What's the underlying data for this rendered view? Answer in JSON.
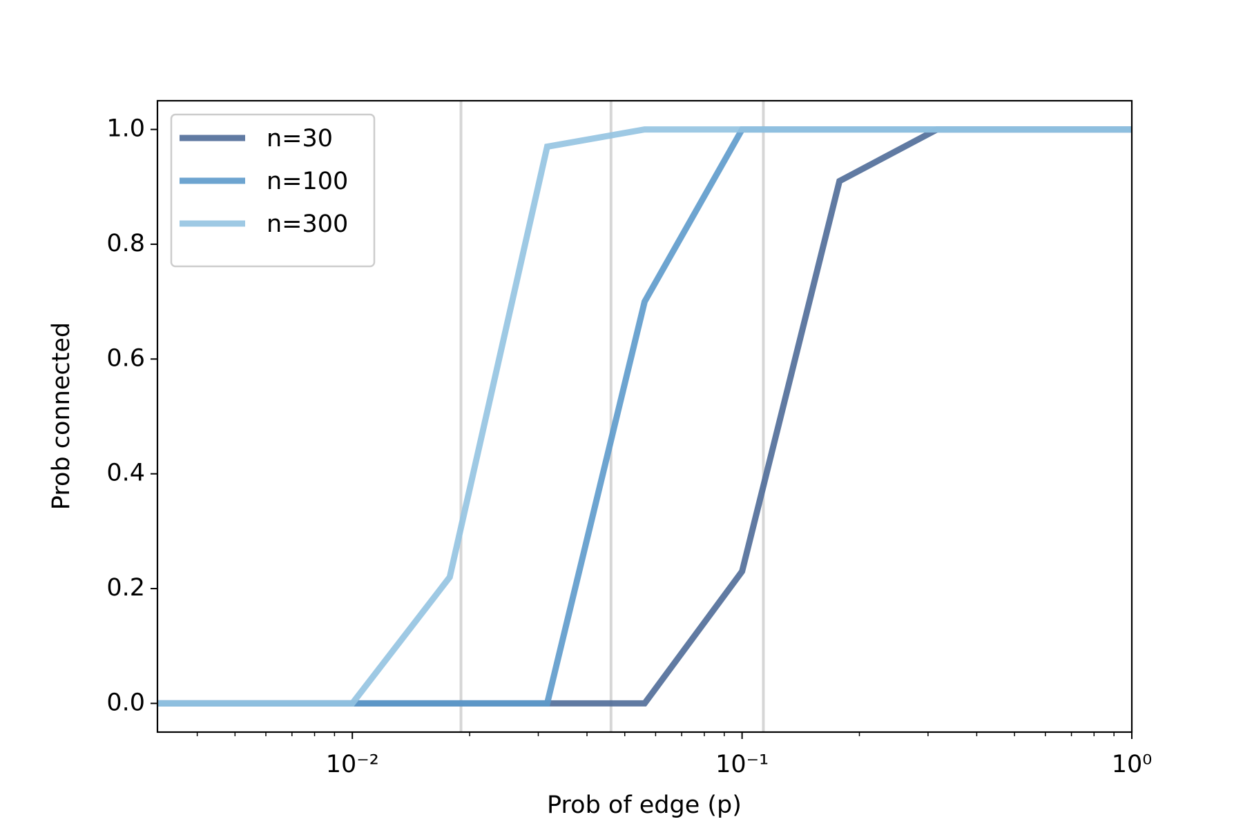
{
  "chart_data": {
    "type": "line",
    "x_label": "Prob of edge (p)",
    "y_label": "Prob connected",
    "x": [
      0.003162,
      0.005623,
      0.01,
      0.01778,
      0.03162,
      0.05623,
      0.1,
      0.1778,
      0.3162,
      0.5623,
      1.0
    ],
    "series": [
      {
        "name": "n=30",
        "color": "#4f6c98",
        "values": [
          0,
          0,
          0,
          0,
          0,
          0,
          0.23,
          0.91,
          1,
          1,
          1
        ]
      },
      {
        "name": "n=100",
        "color": "#5d9acb",
        "values": [
          0,
          0,
          0,
          0,
          0,
          0.7,
          1,
          1,
          1,
          1,
          1
        ]
      },
      {
        "name": "n=300",
        "color": "#93c3e1",
        "values": [
          0,
          0,
          0,
          0.22,
          0.97,
          1,
          1,
          1,
          1,
          1,
          1
        ]
      }
    ],
    "vlines": [
      0.019,
      0.0461,
      0.1134
    ],
    "vline_color": "#d6d6d6",
    "xscale": "log",
    "xlim": [
      0.003162,
      1
    ],
    "ylim": [
      -0.05,
      1.05
    ],
    "xticks": [
      {
        "value": 0.01,
        "label": "10⁻²"
      },
      {
        "value": 0.1,
        "label": "10⁻¹"
      },
      {
        "value": 1,
        "label": "10⁰"
      }
    ],
    "xminorticks": [
      0.004,
      0.005,
      0.006,
      0.007,
      0.008,
      0.009,
      0.02,
      0.03,
      0.04,
      0.05,
      0.06,
      0.07,
      0.08,
      0.09,
      0.2,
      0.3,
      0.4,
      0.5,
      0.6,
      0.7,
      0.8,
      0.9
    ],
    "yticks": [
      {
        "value": 0,
        "label": "0.0"
      },
      {
        "value": 0.2,
        "label": "0.2"
      },
      {
        "value": 0.4,
        "label": "0.4"
      },
      {
        "value": 0.6,
        "label": "0.6"
      },
      {
        "value": 0.8,
        "label": "0.8"
      },
      {
        "value": 1,
        "label": "1.0"
      }
    ],
    "legend": "upper left"
  }
}
